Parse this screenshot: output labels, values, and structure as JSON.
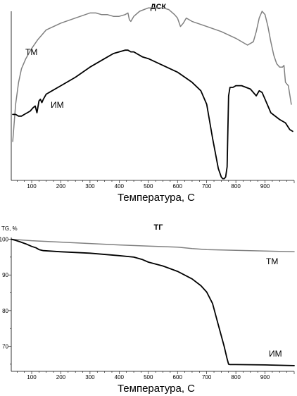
{
  "chart_data": [
    {
      "type": "line",
      "title": "ДСК",
      "xlabel": "Температура, С",
      "ylabel": "",
      "xlim": [
        30,
        1000
      ],
      "x_ticks": [
        100,
        200,
        300,
        400,
        500,
        600,
        700,
        800,
        900
      ],
      "y_ticks": [],
      "ylim": [
        0,
        100
      ],
      "grid": false,
      "series": [
        {
          "name": "ТМ",
          "color": "#808080",
          "x": [
            35,
            45,
            55,
            65,
            80,
            100,
            120,
            150,
            200,
            250,
            300,
            320,
            340,
            360,
            380,
            400,
            420,
            430,
            435,
            440,
            450,
            470,
            500,
            530,
            550,
            570,
            590,
            600,
            610,
            620,
            630,
            650,
            700,
            750,
            800,
            840,
            860,
            870,
            880,
            890,
            900,
            910,
            920,
            930,
            940,
            950,
            960,
            965,
            970,
            975,
            980,
            990
          ],
          "y": [
            23,
            45,
            58,
            66,
            72,
            78,
            83,
            89,
            93,
            96,
            99,
            99,
            98,
            98,
            97,
            97,
            98,
            99,
            95,
            94,
            97,
            100,
            102,
            102,
            102,
            101,
            98,
            96,
            91,
            93,
            96,
            94,
            91,
            88,
            84,
            80,
            82,
            88,
            96,
            100,
            98,
            91,
            82,
            74,
            69,
            67,
            67,
            68,
            58,
            57,
            56,
            45
          ]
        },
        {
          "name": "ИМ",
          "color": "#000000",
          "x": [
            35,
            45,
            55,
            65,
            75,
            85,
            95,
            105,
            112,
            118,
            125,
            130,
            135,
            140,
            150,
            170,
            200,
            250,
            300,
            350,
            380,
            400,
            420,
            430,
            440,
            450,
            480,
            500,
            550,
            600,
            650,
            680,
            700,
            720,
            740,
            750,
            755,
            760,
            765,
            770,
            775,
            780,
            790,
            800,
            820,
            850,
            870,
            880,
            890,
            900,
            920,
            950,
            970,
            985,
            995
          ],
          "y": [
            39,
            39,
            38,
            38,
            39,
            40,
            41,
            43,
            44,
            40,
            47,
            48,
            46,
            48,
            51,
            53,
            56,
            61,
            67,
            72,
            75,
            76,
            77,
            77,
            76,
            76,
            73,
            72,
            68,
            64,
            58,
            53,
            45,
            25,
            7,
            2,
            1,
            1,
            2,
            8,
            50,
            55,
            55,
            56,
            56,
            54,
            50,
            53,
            52,
            48,
            40,
            36,
            34,
            30,
            29
          ]
        }
      ]
    },
    {
      "type": "line",
      "title": "ТГ",
      "xlabel": "Температура, С",
      "ylabel": "TG, %",
      "xlim": [
        30,
        1000
      ],
      "ylim": [
        63,
        100.5
      ],
      "x_ticks": [
        100,
        200,
        300,
        400,
        500,
        600,
        700,
        800,
        900
      ],
      "y_ticks": [
        70,
        80,
        90,
        100
      ],
      "grid": false,
      "series": [
        {
          "name": "ТМ",
          "color": "#808080",
          "x": [
            30,
            100,
            200,
            300,
            400,
            500,
            600,
            650,
            700,
            800,
            900,
            1000
          ],
          "y": [
            100,
            99.6,
            99.2,
            98.8,
            98.4,
            98.1,
            97.8,
            97.4,
            97.1,
            96.9,
            96.7,
            96.5
          ]
        },
        {
          "name": "ИМ",
          "color": "#000000",
          "x": [
            30,
            45,
            60,
            80,
            100,
            115,
            125,
            140,
            200,
            300,
            400,
            450,
            480,
            500,
            550,
            600,
            650,
            680,
            700,
            720,
            740,
            760,
            770,
            775,
            780,
            800,
            900,
            1000
          ],
          "y": [
            100,
            99.7,
            99.3,
            98.7,
            98.0,
            97.6,
            97.1,
            96.8,
            96.5,
            96.1,
            95.4,
            95.0,
            94.3,
            93.6,
            92.5,
            91.0,
            88.9,
            87.0,
            85.2,
            82.0,
            76.0,
            70.0,
            66.5,
            65.0,
            64.9,
            64.9,
            64.8,
            64.6
          ]
        }
      ]
    }
  ]
}
